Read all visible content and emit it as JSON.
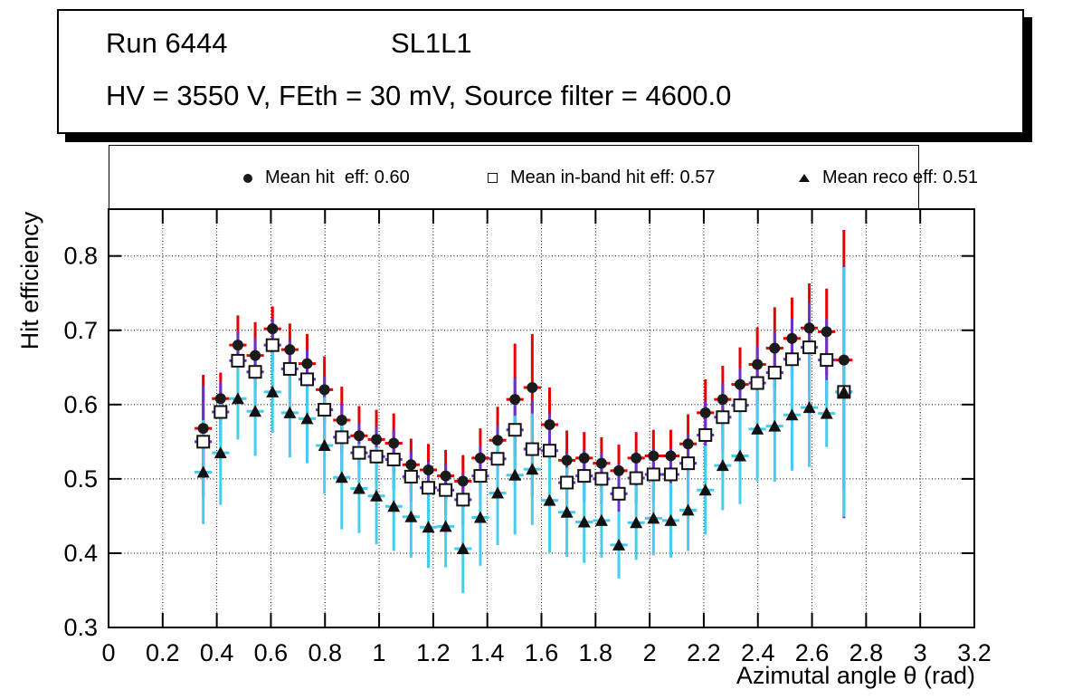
{
  "title_box": {
    "run": "Run 6444",
    "layer": "SL1L1",
    "conditions": "HV = 3550 V, FEth = 30 mV, Source filter = 4600.0"
  },
  "legend": {
    "entries": [
      {
        "label": "Mean hit  eff: 0.60",
        "marker": "filled-circle"
      },
      {
        "label": "Mean in-band hit eff: 0.57",
        "marker": "open-square"
      },
      {
        "label": "Mean reco eff: 0.51",
        "marker": "filled-triangle"
      }
    ]
  },
  "colors": {
    "hit_bar": "#e60000",
    "inband_bar": "#6633cc",
    "reco_bar": "#45ccee",
    "marker": "#1b1b1b",
    "frame": "#000000"
  },
  "chart_data": {
    "type": "scatter",
    "title": "",
    "xlabel": "Azimutal angle θ (rad)",
    "ylabel": "Hit efficiency",
    "xlim": [
      0,
      3.2
    ],
    "ylim": [
      0.3,
      0.863
    ],
    "grid": true,
    "legend_position": "top",
    "x_ticks": [
      0,
      0.2,
      0.4,
      0.6,
      0.8,
      1.0,
      1.2,
      1.4,
      1.6,
      1.8,
      2.0,
      2.2,
      2.4,
      2.6,
      2.8,
      3.0,
      3.2
    ],
    "x_tick_labels": [
      "0",
      "0.2",
      "0.4",
      "0.6",
      "0.8",
      "1",
      "1.2",
      "1.4",
      "1.6",
      "1.8",
      "2",
      "2.2",
      "2.4",
      "2.6",
      "2.8",
      "3",
      "3.2"
    ],
    "y_ticks": [
      0.3,
      0.4,
      0.5,
      0.6,
      0.7,
      0.8
    ],
    "y_tick_labels": [
      "0.3",
      "0.4",
      "0.5",
      "0.6",
      "0.7",
      "0.8"
    ],
    "x_err": 0.032,
    "x": [
      0.35,
      0.414,
      0.478,
      0.542,
      0.606,
      0.67,
      0.734,
      0.798,
      0.862,
      0.926,
      0.99,
      1.054,
      1.118,
      1.182,
      1.246,
      1.31,
      1.374,
      1.438,
      1.502,
      1.566,
      1.63,
      1.694,
      1.758,
      1.822,
      1.886,
      1.95,
      2.014,
      2.078,
      2.142,
      2.206,
      2.27,
      2.334,
      2.398,
      2.462,
      2.526,
      2.59,
      2.654,
      2.718
    ],
    "series": [
      {
        "id": "hit",
        "name": "Mean hit  eff: 0.60",
        "mean": 0.6,
        "marker": "filled-circle",
        "bar_color": "#e60000",
        "values": [
          0.568,
          0.608,
          0.68,
          0.666,
          0.702,
          0.674,
          0.655,
          0.62,
          0.579,
          0.558,
          0.553,
          0.548,
          0.519,
          0.512,
          0.504,
          0.497,
          0.528,
          0.552,
          0.607,
          0.623,
          0.573,
          0.525,
          0.528,
          0.521,
          0.511,
          0.528,
          0.531,
          0.531,
          0.547,
          0.589,
          0.607,
          0.627,
          0.654,
          0.676,
          0.689,
          0.703,
          0.698,
          0.66
        ],
        "errors": [
          0.072,
          0.035,
          0.04,
          0.045,
          0.03,
          0.035,
          0.04,
          0.045,
          0.045,
          0.04,
          0.04,
          0.04,
          0.035,
          0.035,
          0.035,
          0.035,
          0.04,
          0.045,
          0.075,
          0.072,
          0.05,
          0.04,
          0.035,
          0.035,
          0.035,
          0.035,
          0.035,
          0.035,
          0.04,
          0.045,
          0.045,
          0.05,
          0.05,
          0.055,
          0.055,
          0.06,
          0.058,
          0.175
        ]
      },
      {
        "id": "inband",
        "name": "Mean in-band hit eff: 0.57",
        "mean": 0.57,
        "marker": "open-square",
        "bar_color": "#6633cc",
        "values": [
          0.55,
          0.59,
          0.659,
          0.644,
          0.68,
          0.648,
          0.634,
          0.593,
          0.556,
          0.535,
          0.53,
          0.526,
          0.503,
          0.488,
          0.485,
          0.472,
          0.504,
          0.527,
          0.566,
          0.54,
          0.538,
          0.495,
          0.504,
          0.5,
          0.48,
          0.501,
          0.506,
          0.506,
          0.521,
          0.559,
          0.583,
          0.599,
          0.629,
          0.643,
          0.661,
          0.677,
          0.66,
          0.617
        ],
        "errors": [
          0.075,
          0.04,
          0.04,
          0.045,
          0.035,
          0.04,
          0.04,
          0.045,
          0.045,
          0.04,
          0.04,
          0.04,
          0.035,
          0.035,
          0.035,
          0.035,
          0.04,
          0.045,
          0.07,
          0.065,
          0.05,
          0.04,
          0.035,
          0.035,
          0.04,
          0.035,
          0.035,
          0.035,
          0.04,
          0.045,
          0.045,
          0.05,
          0.05,
          0.055,
          0.055,
          0.06,
          0.055,
          0.17
        ]
      },
      {
        "id": "reco",
        "name": "Mean reco eff: 0.51",
        "mean": 0.51,
        "marker": "filled-triangle",
        "bar_color": "#45ccee",
        "values": [
          0.509,
          0.535,
          0.608,
          0.591,
          0.617,
          0.589,
          0.581,
          0.545,
          0.502,
          0.487,
          0.477,
          0.463,
          0.449,
          0.435,
          0.436,
          0.406,
          0.448,
          0.481,
          0.505,
          0.513,
          0.471,
          0.455,
          0.442,
          0.444,
          0.411,
          0.441,
          0.447,
          0.444,
          0.458,
          0.485,
          0.518,
          0.531,
          0.567,
          0.571,
          0.586,
          0.596,
          0.588,
          0.617
        ],
        "errors": [
          0.07,
          0.07,
          0.055,
          0.06,
          0.055,
          0.06,
          0.06,
          0.065,
          0.07,
          0.06,
          0.065,
          0.06,
          0.055,
          0.055,
          0.055,
          0.06,
          0.065,
          0.07,
          0.08,
          0.075,
          0.07,
          0.06,
          0.055,
          0.05,
          0.045,
          0.05,
          0.05,
          0.05,
          0.055,
          0.06,
          0.06,
          0.065,
          0.07,
          0.075,
          0.075,
          0.08,
          0.045,
          0.168
        ]
      }
    ]
  }
}
